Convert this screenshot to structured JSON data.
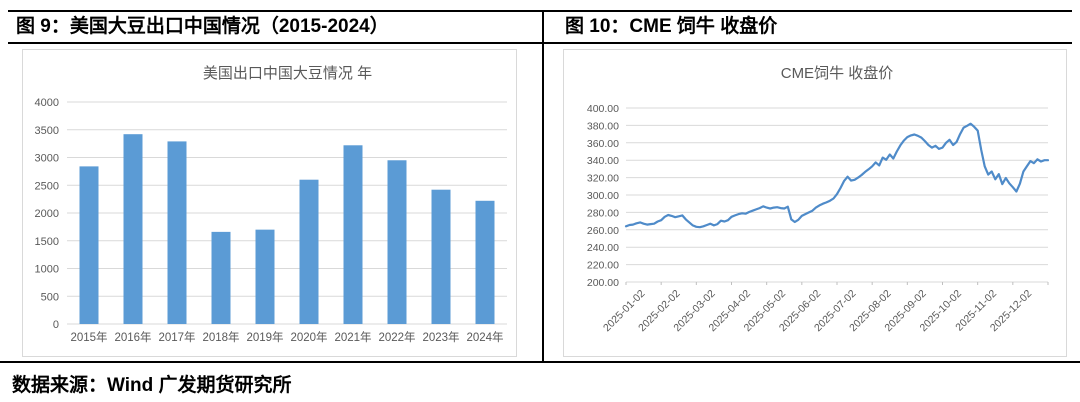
{
  "page": {
    "header_left": "图 9：美国大豆出口中国情况（2015-2024）",
    "header_right": "图 10：CME 饲牛 收盘价",
    "source": "数据来源：Wind 广发期货研究所"
  },
  "colors": {
    "bar_fill": "#5B9BD5",
    "line_stroke": "#4F8BC9",
    "grid": "#d9d9d9",
    "axis_text": "#595959",
    "border": "#d9d9d9"
  },
  "chart_data": [
    {
      "type": "bar",
      "title": "美国出口中国大豆情况 年",
      "categories": [
        "2015年",
        "2016年",
        "2017年",
        "2018年",
        "2019年",
        "2020年",
        "2021年",
        "2022年",
        "2023年",
        "2024年"
      ],
      "values": [
        2840,
        3420,
        3290,
        1660,
        1700,
        2600,
        3220,
        2950,
        2420,
        2220
      ],
      "xlabel": "",
      "ylabel": "",
      "ylim": [
        0,
        4000
      ],
      "ytick_step": 500,
      "grid": true,
      "legend": false
    },
    {
      "type": "line",
      "title": "CME饲牛 收盘价",
      "x_tick_labels": [
        "2025-01-02",
        "2025-02-02",
        "2025-03-02",
        "2025-04-02",
        "2025-05-02",
        "2025-06-02",
        "2025-07-02",
        "2025-08-02",
        "2025-09-02",
        "2025-10-02",
        "2025-11-02",
        "2025-12-02"
      ],
      "values": [
        264,
        265.5,
        266,
        267.5,
        268.5,
        267,
        266,
        266.5,
        267,
        269.5,
        271,
        275,
        277,
        276,
        274.5,
        275.5,
        276.5,
        272,
        268.5,
        265,
        263.5,
        263,
        264,
        265.5,
        267,
        265,
        266.5,
        270.5,
        269.5,
        271,
        275,
        276.5,
        278,
        279,
        278.5,
        280.5,
        282,
        283.5,
        285,
        287,
        285.5,
        284.5,
        285.5,
        286,
        285,
        284.5,
        286.5,
        272,
        269,
        271.5,
        276,
        278,
        280,
        282,
        285.5,
        288,
        290,
        291.5,
        293.5,
        296,
        301,
        308,
        316,
        321,
        316.5,
        317.5,
        320,
        323,
        326.5,
        329.5,
        333,
        337.5,
        334,
        343,
        340.5,
        346.5,
        342,
        350,
        357,
        362.5,
        366.5,
        368.5,
        369.5,
        368,
        366,
        362,
        357.5,
        354.5,
        356.5,
        353,
        354.5,
        360,
        363.5,
        357.5,
        361,
        370,
        377.5,
        379.5,
        382,
        378.5,
        374,
        352,
        333,
        323.5,
        327,
        318,
        324,
        312.5,
        319.5,
        313.5,
        309,
        304,
        313,
        327,
        333,
        339,
        336.5,
        341,
        338.5,
        340,
        340
      ],
      "xlabel": "",
      "ylabel": "",
      "ylim": [
        200,
        400
      ],
      "ytick_step": 20,
      "ytick_format": "2dp",
      "grid": true,
      "legend": false
    }
  ]
}
